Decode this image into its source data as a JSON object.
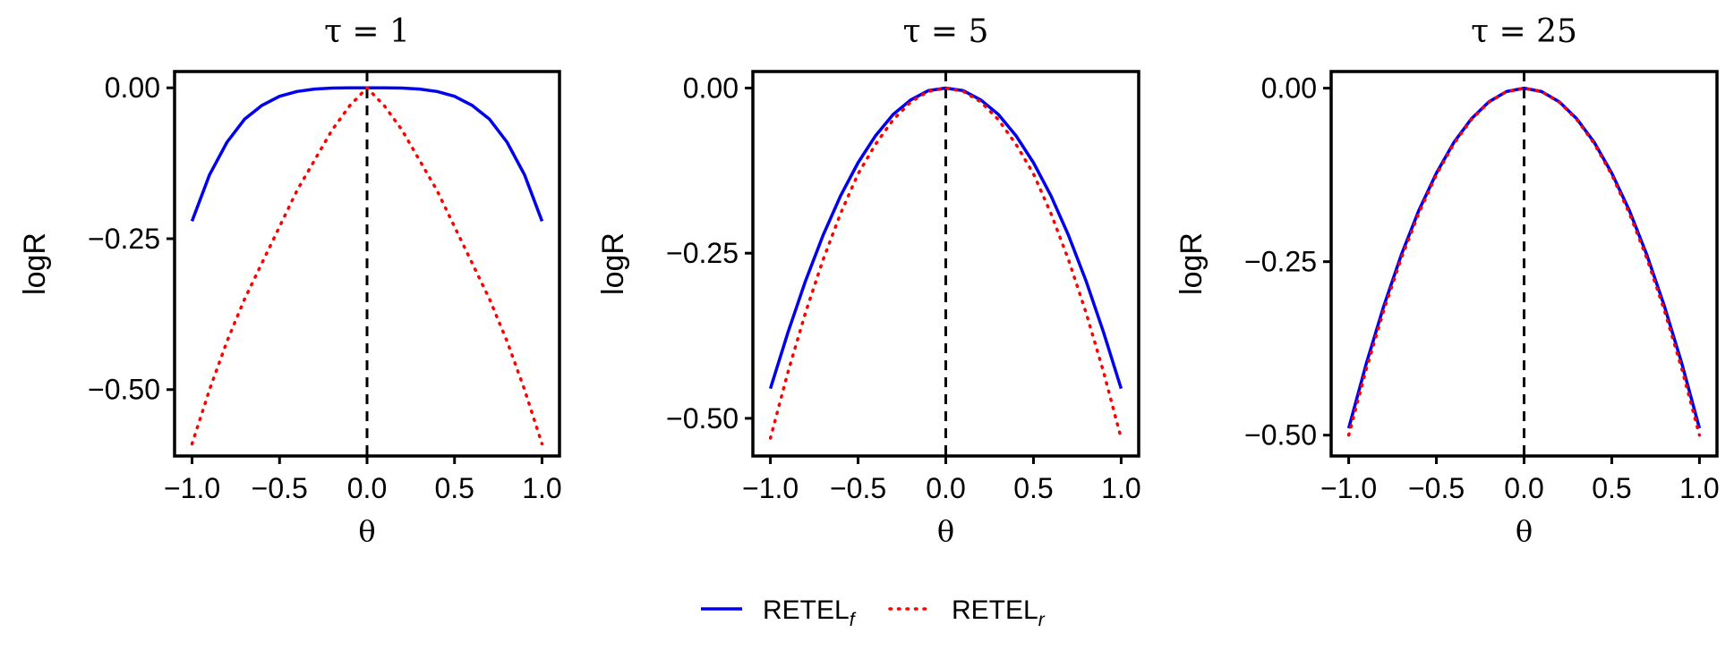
{
  "chart_data": [
    {
      "type": "line",
      "title": "τ = 1",
      "xlabel": "θ",
      "ylabel": "logR",
      "xlim": [
        -1.1,
        1.1
      ],
      "ylim": [
        -0.61,
        0.027
      ],
      "xticks": [
        -1.0,
        -0.5,
        0.0,
        0.5,
        1.0
      ],
      "xtick_labels": [
        "−1.0",
        "−0.5",
        "0.0",
        "0.5",
        "1.0"
      ],
      "yticks": [
        0.0,
        -0.25,
        -0.5
      ],
      "ytick_labels": [
        "0.00",
        "−0.25",
        "−0.50"
      ],
      "vline_x": 0.0,
      "x": [
        -1.0,
        -0.9,
        -0.8,
        -0.7,
        -0.6,
        -0.5,
        -0.4,
        -0.3,
        -0.2,
        -0.1,
        0.0,
        0.1,
        0.2,
        0.3,
        0.4,
        0.5,
        0.6,
        0.7,
        0.8,
        0.9,
        1.0
      ],
      "series": [
        {
          "name": "RETEL_f",
          "color": "#0000ee",
          "style": "solid",
          "values": [
            -0.221,
            -0.144,
            -0.09,
            -0.052,
            -0.029,
            -0.014,
            -0.006,
            -0.002,
            -0.0004,
            0.0,
            0.0,
            0.0,
            -0.0004,
            -0.002,
            -0.006,
            -0.014,
            -0.029,
            -0.052,
            -0.09,
            -0.144,
            -0.221
          ]
        },
        {
          "name": "RETEL_r",
          "color": "#ff0000",
          "style": "dotted",
          "values": [
            -0.59,
            -0.5,
            -0.42,
            -0.35,
            -0.29,
            -0.23,
            -0.17,
            -0.12,
            -0.07,
            -0.03,
            0.0,
            -0.03,
            -0.07,
            -0.12,
            -0.17,
            -0.23,
            -0.29,
            -0.35,
            -0.42,
            -0.5,
            -0.59
          ]
        }
      ]
    },
    {
      "type": "line",
      "title": "τ = 5",
      "xlabel": "θ",
      "ylabel": "logR",
      "xlim": [
        -1.1,
        1.1
      ],
      "ylim": [
        -0.557,
        0.025
      ],
      "xticks": [
        -1.0,
        -0.5,
        0.0,
        0.5,
        1.0
      ],
      "xtick_labels": [
        "−1.0",
        "−0.5",
        "0.0",
        "0.5",
        "1.0"
      ],
      "yticks": [
        0.0,
        -0.25,
        -0.5
      ],
      "ytick_labels": [
        "0.00",
        "−0.25",
        "−0.50"
      ],
      "vline_x": 0.0,
      "x": [
        -1.0,
        -0.9,
        -0.8,
        -0.7,
        -0.6,
        -0.5,
        -0.4,
        -0.3,
        -0.2,
        -0.1,
        0.0,
        0.1,
        0.2,
        0.3,
        0.4,
        0.5,
        0.6,
        0.7,
        0.8,
        0.9,
        1.0
      ],
      "series": [
        {
          "name": "RETEL_f",
          "color": "#0000ee",
          "style": "solid",
          "values": [
            -0.455,
            -0.37,
            -0.292,
            -0.223,
            -0.163,
            -0.113,
            -0.072,
            -0.04,
            -0.018,
            -0.004,
            0.0,
            -0.004,
            -0.018,
            -0.04,
            -0.072,
            -0.113,
            -0.163,
            -0.223,
            -0.292,
            -0.37,
            -0.455
          ]
        },
        {
          "name": "RETEL_r",
          "color": "#ff0000",
          "style": "dotted",
          "values": [
            -0.53,
            -0.43,
            -0.34,
            -0.26,
            -0.19,
            -0.13,
            -0.085,
            -0.048,
            -0.021,
            -0.005,
            0.0,
            -0.005,
            -0.021,
            -0.048,
            -0.085,
            -0.13,
            -0.19,
            -0.26,
            -0.34,
            -0.43,
            -0.53
          ]
        }
      ]
    },
    {
      "type": "line",
      "title": "τ = 25",
      "xlabel": "θ",
      "ylabel": "logR",
      "xlim": [
        -1.1,
        1.1
      ],
      "ylim": [
        -0.53,
        0.024
      ],
      "xticks": [
        -1.0,
        -0.5,
        0.0,
        0.5,
        1.0
      ],
      "xtick_labels": [
        "−1.0",
        "−0.5",
        "0.0",
        "0.5",
        "1.0"
      ],
      "yticks": [
        0.0,
        -0.25,
        -0.5
      ],
      "ytick_labels": [
        "0.00",
        "−0.25",
        "−0.50"
      ],
      "vline_x": 0.0,
      "x": [
        -1.0,
        -0.9,
        -0.8,
        -0.7,
        -0.6,
        -0.5,
        -0.4,
        -0.3,
        -0.2,
        -0.1,
        0.0,
        0.1,
        0.2,
        0.3,
        0.4,
        0.5,
        0.6,
        0.7,
        0.8,
        0.9,
        1.0
      ],
      "series": [
        {
          "name": "RETEL_f",
          "color": "#0000ee",
          "style": "solid",
          "values": [
            -0.49,
            -0.397,
            -0.314,
            -0.24,
            -0.176,
            -0.1225,
            -0.078,
            -0.044,
            -0.0196,
            -0.0049,
            0.0,
            -0.0049,
            -0.0196,
            -0.044,
            -0.078,
            -0.1225,
            -0.176,
            -0.24,
            -0.314,
            -0.397,
            -0.49
          ]
        },
        {
          "name": "RETEL_r",
          "color": "#ff0000",
          "style": "dotted",
          "values": [
            -0.5,
            -0.405,
            -0.32,
            -0.245,
            -0.18,
            -0.125,
            -0.08,
            -0.045,
            -0.02,
            -0.005,
            0.0,
            -0.005,
            -0.02,
            -0.045,
            -0.08,
            -0.125,
            -0.18,
            -0.245,
            -0.32,
            -0.405,
            -0.5
          ]
        }
      ]
    }
  ],
  "legend": {
    "placement": "bottom-center",
    "items": [
      {
        "base": "RETEL",
        "sub": "f",
        "color": "#0000ee",
        "style": "solid"
      },
      {
        "base": "RETEL",
        "sub": "r",
        "color": "#ff0000",
        "style": "dotted"
      }
    ]
  }
}
